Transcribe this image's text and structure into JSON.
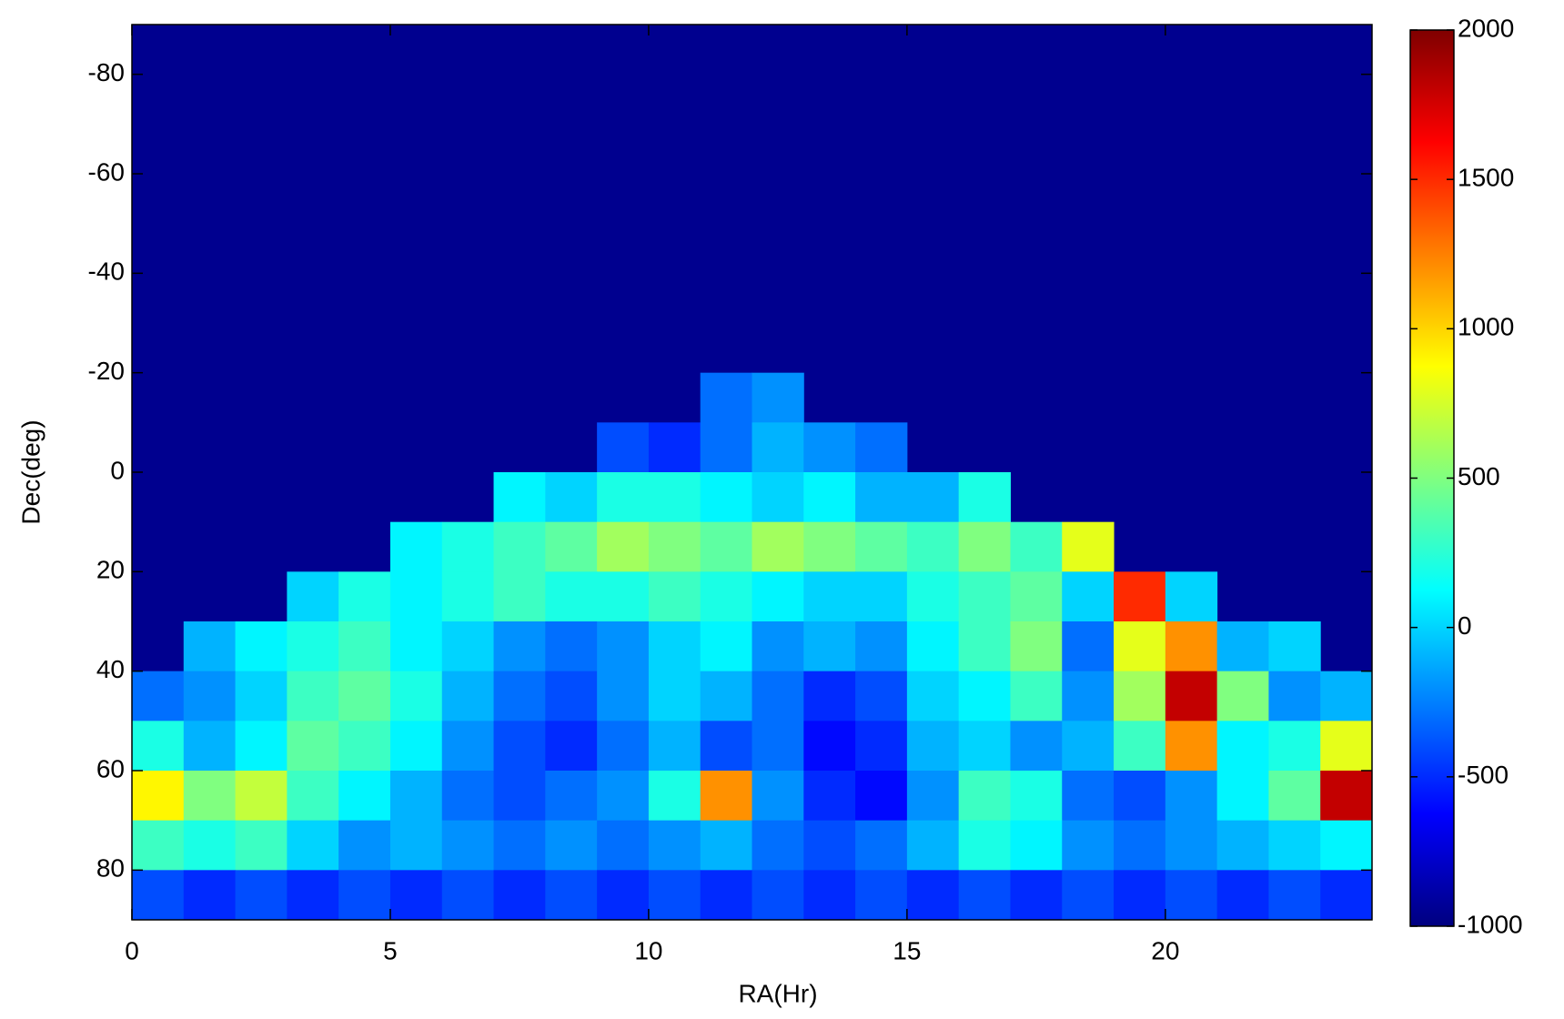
{
  "chart_data": {
    "type": "heatmap",
    "xlabel": "RA(Hr)",
    "ylabel": "Dec(deg)",
    "xlim": [
      0,
      24
    ],
    "xticks": [
      0,
      5,
      10,
      15,
      20
    ],
    "ylim": [
      90,
      -90
    ],
    "yticks": [
      -80,
      -60,
      -40,
      -20,
      0,
      20,
      40,
      60,
      80
    ],
    "x_edges": [
      0,
      1,
      2,
      3,
      4,
      5,
      6,
      7,
      8,
      9,
      10,
      11,
      12,
      13,
      14,
      15,
      16,
      17,
      18,
      19,
      20,
      21,
      22,
      23,
      24
    ],
    "y_edges": [
      -90,
      -80,
      -70,
      -60,
      -50,
      -40,
      -30,
      -20,
      -10,
      0,
      10,
      20,
      30,
      40,
      50,
      60,
      70,
      80,
      90
    ],
    "colormap": "jet",
    "background_color": "#00008f",
    "clim": [
      -1000,
      2000
    ],
    "cticks": [
      -1000,
      -500,
      0,
      500,
      1000,
      1500,
      2000
    ],
    "z": [
      [
        null,
        null,
        null,
        null,
        null,
        null,
        null,
        null,
        null,
        null,
        null,
        null,
        null,
        null,
        null,
        null,
        null,
        null,
        null,
        null,
        null,
        null,
        null,
        null
      ],
      [
        null,
        null,
        null,
        null,
        null,
        null,
        null,
        null,
        null,
        null,
        null,
        null,
        null,
        null,
        null,
        null,
        null,
        null,
        null,
        null,
        null,
        null,
        null,
        null
      ],
      [
        null,
        null,
        null,
        null,
        null,
        null,
        null,
        null,
        null,
        null,
        null,
        null,
        null,
        null,
        null,
        null,
        null,
        null,
        null,
        null,
        null,
        null,
        null,
        null
      ],
      [
        null,
        null,
        null,
        null,
        null,
        null,
        null,
        null,
        null,
        null,
        null,
        null,
        null,
        null,
        null,
        null,
        null,
        null,
        null,
        null,
        null,
        null,
        null,
        null
      ],
      [
        null,
        null,
        null,
        null,
        null,
        null,
        null,
        null,
        null,
        null,
        null,
        null,
        null,
        null,
        null,
        null,
        null,
        null,
        null,
        null,
        null,
        null,
        null,
        null
      ],
      [
        null,
        null,
        null,
        null,
        null,
        null,
        null,
        null,
        null,
        null,
        null,
        null,
        null,
        null,
        null,
        null,
        null,
        null,
        null,
        null,
        null,
        null,
        null,
        null
      ],
      [
        null,
        null,
        null,
        null,
        null,
        null,
        null,
        null,
        null,
        null,
        null,
        null,
        null,
        null,
        null,
        null,
        null,
        null,
        null,
        null,
        null,
        null,
        null,
        null
      ],
      [
        null,
        null,
        null,
        null,
        null,
        null,
        null,
        null,
        null,
        null,
        null,
        -300,
        -200,
        null,
        null,
        null,
        null,
        null,
        null,
        null,
        null,
        null,
        null,
        null
      ],
      [
        null,
        null,
        null,
        null,
        null,
        null,
        null,
        null,
        null,
        -400,
        -500,
        -300,
        -100,
        -200,
        -300,
        null,
        null,
        null,
        null,
        null,
        null,
        null,
        null,
        null
      ],
      [
        null,
        null,
        null,
        null,
        null,
        null,
        null,
        100,
        0,
        200,
        200,
        100,
        0,
        100,
        -100,
        -100,
        200,
        null,
        null,
        null,
        null,
        null,
        null,
        null
      ],
      [
        null,
        null,
        null,
        null,
        null,
        100,
        200,
        300,
        400,
        600,
        500,
        400,
        600,
        500,
        400,
        300,
        500,
        300,
        800,
        null,
        null,
        null,
        null,
        null
      ],
      [
        null,
        null,
        null,
        0,
        200,
        100,
        200,
        300,
        200,
        200,
        300,
        200,
        100,
        0,
        0,
        200,
        300,
        400,
        0,
        1500,
        0,
        null,
        null,
        null
      ],
      [
        null,
        -100,
        100,
        200,
        300,
        100,
        0,
        -200,
        -300,
        -200,
        0,
        100,
        -200,
        -100,
        -200,
        100,
        300,
        500,
        -300,
        800,
        1200,
        -100,
        0,
        null
      ],
      [
        -300,
        -200,
        0,
        300,
        400,
        200,
        -100,
        -300,
        -400,
        -200,
        0,
        -100,
        -300,
        -500,
        -400,
        0,
        100,
        300,
        -200,
        600,
        1800,
        500,
        -200,
        -100
      ],
      [
        200,
        -100,
        100,
        400,
        300,
        100,
        -200,
        -400,
        -500,
        -300,
        -100,
        -400,
        -300,
        -600,
        -500,
        -100,
        0,
        -200,
        -100,
        300,
        1200,
        100,
        200,
        800
      ],
      [
        900,
        500,
        700,
        300,
        100,
        -100,
        -300,
        -400,
        -300,
        -200,
        200,
        1200,
        -200,
        -500,
        -600,
        -200,
        300,
        200,
        -300,
        -400,
        -200,
        100,
        400,
        1800
      ],
      [
        300,
        200,
        300,
        0,
        -200,
        -100,
        -200,
        -300,
        -200,
        -300,
        -200,
        -100,
        -300,
        -400,
        -300,
        -100,
        200,
        100,
        -200,
        -300,
        -200,
        -100,
        0,
        100
      ],
      [
        -400,
        -500,
        -400,
        -500,
        -400,
        -500,
        -400,
        -500,
        -400,
        -500,
        -400,
        -500,
        -400,
        -500,
        -400,
        -500,
        -400,
        -500,
        -400,
        -500,
        -400,
        -500,
        -400,
        -500
      ]
    ]
  }
}
